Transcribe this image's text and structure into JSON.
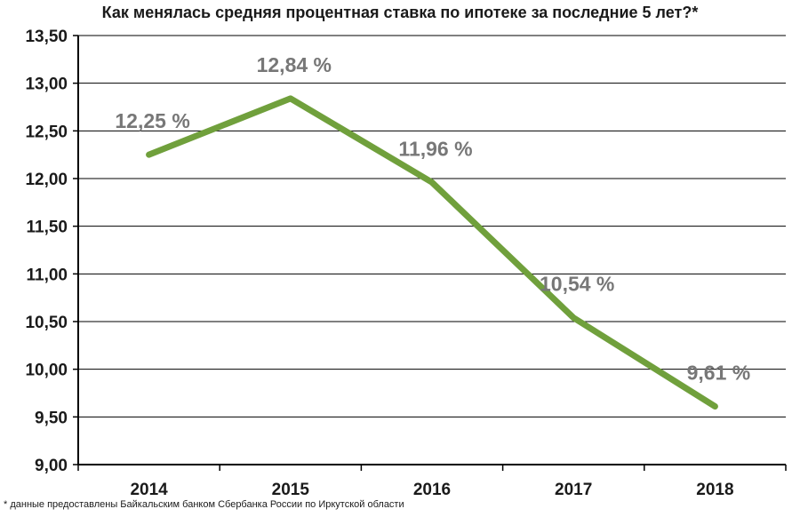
{
  "title": "Как менялась средняя процентная ставка по ипотеке за последние 5 лет?*",
  "footnote": "* данные  предоставлены Байкальским банком Сбербанка России по Иркутской области",
  "colors": {
    "line": "#70a03c",
    "data_label": "#777777",
    "axis": "#000000",
    "grid": "#000000",
    "text": "#1a1a1a"
  },
  "chart_data": {
    "type": "line",
    "categories": [
      "2014",
      "2015",
      "2016",
      "2017",
      "2018"
    ],
    "series": [
      {
        "values": [
          12.25,
          12.84,
          11.96,
          10.54,
          9.61
        ]
      }
    ],
    "data_labels": [
      "12,25 %",
      "12,84 %",
      "11,96 %",
      "10,54 %",
      "9,61 %"
    ],
    "y_ticks": [
      "13,50",
      "13,00",
      "12,50",
      "12,00",
      "11,50",
      "11,00",
      "10,50",
      "10,00",
      "9,50",
      "9,00"
    ],
    "ylim": [
      9.0,
      13.5
    ],
    "y_step": 0.5,
    "grid": true,
    "legend": "none"
  }
}
